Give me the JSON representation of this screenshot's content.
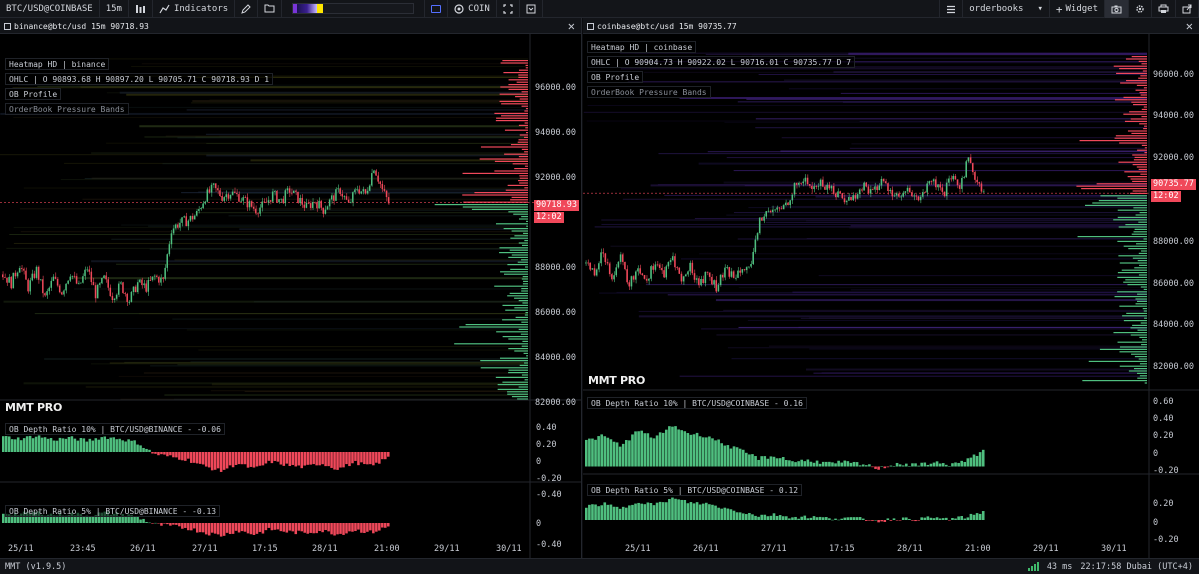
{
  "toolbar": {
    "symbol": "BTC/USD@COINBASE",
    "interval": "15m",
    "indicators_label": "Indicators",
    "coin_label": "COIN",
    "orderbooks_label": "orderbooks",
    "widget_label": "Widget",
    "heatmap_colors": [
      "#1c1250",
      "#3a1f8f",
      "#7a35d8",
      "#c7b8ff",
      "#ffe600"
    ]
  },
  "panes": [
    {
      "tab_title": "binance@btc/usd 15m 90718.93",
      "legend_heatmap": "Heatmap HD | binance",
      "legend_ohlc": "OHLC | O 90893.68 H 90897.20 L 90705.71 C 90718.93 D 1",
      "legend_obprofile": "OB Profile",
      "legend_bands": "OrderBook Pressure Bands",
      "brand": "MMT PRO",
      "last_price": "90718.93",
      "countdown": "12:02",
      "price_ticks": [
        "96000.00",
        "94000.00",
        "92000.00",
        "88000.00",
        "86000.00",
        "84000.00",
        "82000.00"
      ],
      "ind1_title": "OB Depth Ratio 10% | BTC/USD@BINANCE - -0.06",
      "ind1_ticks": [
        "0.40",
        "0.20",
        "0",
        "-0.20",
        "-0.40"
      ],
      "ind2_title": "OB Depth Ratio 5% | BTC/USD@BINANCE - -0.13",
      "ind2_ticks": [
        "0",
        "-0.40"
      ],
      "dates": [
        "25/11",
        "23:45",
        "26/11",
        "27/11",
        "17:15",
        "28/11",
        "21:00",
        "29/11",
        "30/11"
      ]
    },
    {
      "tab_title": "coinbase@btc/usd 15m 90735.77",
      "legend_heatmap": "Heatmap HD | coinbase",
      "legend_ohlc": "OHLC | O 90904.73 H 90922.02 L 90716.01 C 90735.77 D 7",
      "legend_obprofile": "OB Profile",
      "legend_bands": "OrderBook Pressure Bands",
      "brand": "MMT PRO",
      "last_price": "90735.77",
      "countdown": "12:02",
      "price_ticks": [
        "96000.00",
        "94000.00",
        "92000.00",
        "88000.00",
        "86000.00",
        "84000.00",
        "82000.00"
      ],
      "ind1_title": "OB Depth Ratio 10% | BTC/USD@COINBASE - 0.16",
      "ind1_ticks": [
        "0.60",
        "0.40",
        "0.20",
        "0",
        "-0.20"
      ],
      "ind2_title": "OB Depth Ratio 5% | BTC/USD@COINBASE - 0.12",
      "ind2_ticks": [
        "0.20",
        "0",
        "-0.20"
      ],
      "dates": [
        "25/11",
        "26/11",
        "27/11",
        "17:15",
        "28/11",
        "21:00",
        "29/11",
        "30/11"
      ]
    }
  ],
  "status": {
    "version": "MMT (v1.9.5)",
    "latency": "43 ms",
    "clock": "22:17:58 Dubai (UTC+4)"
  },
  "colors": {
    "up": "#4fbf7f",
    "down": "#f0485a",
    "accent": "#5570ff"
  },
  "chart_data": [
    {
      "type": "candlestick",
      "series": [
        {
          "name": "binance@btc/usd 15m",
          "last": 90718.93
        }
      ],
      "ylim": [
        81500,
        97500
      ],
      "y_ticks": [
        82000,
        84000,
        86000,
        88000,
        92000,
        94000,
        96000
      ],
      "x_ticks": [
        "25/11",
        "23:45",
        "26/11",
        "27/11",
        "17:15",
        "28/11",
        "21:00",
        "29/11",
        "30/11"
      ],
      "close_path": [
        87400,
        87000,
        87900,
        86800,
        87600,
        86300,
        87200,
        86600,
        87500,
        86800,
        87700,
        86500,
        87200,
        86400,
        86900,
        86200,
        87000,
        86800,
        87300,
        87100,
        89500,
        89800,
        89900,
        90200,
        91000,
        91400,
        91000,
        91200,
        91000,
        90700,
        90400,
        90600,
        91100,
        90800,
        91300,
        90900,
        90500,
        90800,
        90400,
        90900,
        91300,
        90600,
        91400,
        91100,
        92400,
        91300,
        90500
      ]
    },
    {
      "type": "candlestick",
      "series": [
        {
          "name": "coinbase@btc/usd 15m",
          "last": 90735.77
        }
      ],
      "ylim": [
        81500,
        97500
      ],
      "y_ticks": [
        82000,
        84000,
        86000,
        88000,
        92000,
        94000,
        96000
      ],
      "x_ticks": [
        "25/11",
        "26/11",
        "27/11",
        "17:15",
        "28/11",
        "21:00",
        "29/11",
        "30/11"
      ],
      "close_path": [
        87400,
        87000,
        87900,
        86800,
        87600,
        86300,
        87200,
        86600,
        87500,
        86800,
        87700,
        86500,
        87200,
        86400,
        86900,
        86200,
        87000,
        86800,
        87300,
        87100,
        89500,
        89800,
        89900,
        90200,
        91000,
        91400,
        91000,
        91200,
        91000,
        90700,
        90400,
        90600,
        91100,
        90800,
        91300,
        90900,
        90500,
        90800,
        90400,
        90900,
        91300,
        90600,
        91400,
        91100,
        92400,
        91300,
        90500
      ]
    },
    {
      "type": "bar",
      "title": "OB Depth Ratio 10% | BTC/USD@BINANCE - -0.06",
      "ylim": [
        -0.4,
        0.4
      ],
      "values": [
        0.16,
        0.14,
        0.17,
        0.13,
        0.15,
        0.12,
        0.16,
        0.14,
        0.1,
        -0.02,
        -0.05,
        -0.08,
        -0.15,
        -0.2,
        -0.12,
        -0.18,
        -0.1,
        -0.14,
        -0.16,
        -0.12,
        -0.18,
        -0.11,
        -0.15,
        -0.06
      ]
    },
    {
      "type": "bar",
      "title": "OB Depth Ratio 10% | BTC/USD@COINBASE - 0.16",
      "ylim": [
        -0.2,
        0.6
      ],
      "values": [
        0.25,
        0.3,
        0.2,
        0.35,
        0.28,
        0.4,
        0.32,
        0.3,
        0.22,
        0.15,
        0.08,
        0.1,
        0.05,
        0.06,
        0.03,
        0.04,
        0.02,
        -0.02,
        0.03,
        0.01,
        0.04,
        0.02,
        0.05,
        0.16
      ]
    }
  ]
}
